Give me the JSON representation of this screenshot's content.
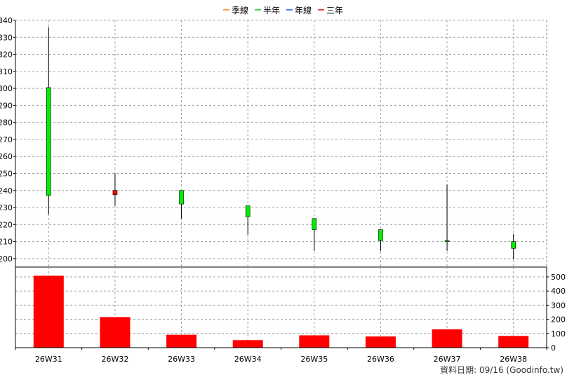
{
  "chart_data": {
    "type": "candlestick",
    "legend": [
      {
        "label": "季線",
        "color": "#ff8000"
      },
      {
        "label": "半年",
        "color": "#00cc00"
      },
      {
        "label": "年線",
        "color": "#0050ff"
      },
      {
        "label": "三年",
        "color": "#ff0000"
      }
    ],
    "categories": [
      "26W31",
      "26W32",
      "26W33",
      "26W34",
      "26W35",
      "26W36",
      "26W37",
      "26W38"
    ],
    "price_axis": {
      "ylim": [
        195,
        340
      ],
      "ticks": [
        200,
        210,
        220,
        230,
        240,
        250,
        260,
        270,
        280,
        290,
        300,
        310,
        320,
        330,
        340
      ]
    },
    "candles": [
      {
        "open": 300.5,
        "high": 336,
        "low": 226,
        "close": 237
      },
      {
        "open": 237.5,
        "high": 250,
        "low": 231,
        "close": 240
      },
      {
        "open": 240,
        "high": 240,
        "low": 223.5,
        "close": 232
      },
      {
        "open": 231,
        "high": 231,
        "low": 214,
        "close": 224.5
      },
      {
        "open": 223.5,
        "high": 223.5,
        "low": 204.5,
        "close": 217
      },
      {
        "open": 217,
        "high": 217,
        "low": 204.5,
        "close": 210.5
      },
      {
        "open": 210.5,
        "high": 243.5,
        "low": 204.5,
        "close": 210
      },
      {
        "open": 210,
        "high": 214.5,
        "low": 199.5,
        "close": 206
      }
    ],
    "volume_axis": {
      "ylim": [
        0,
        500
      ],
      "ticks": [
        0,
        100,
        200,
        300,
        400,
        500
      ]
    },
    "volumes": [
      508,
      216,
      91,
      53,
      87,
      79,
      130,
      83
    ],
    "colors": {
      "up": "#ff0000",
      "down": "#00ee00",
      "volume": "#ff0000",
      "grid": "#a0a0a0"
    }
  },
  "footer": {
    "date_label": "資料日期: 09/16  (Goodinfo.tw)"
  }
}
